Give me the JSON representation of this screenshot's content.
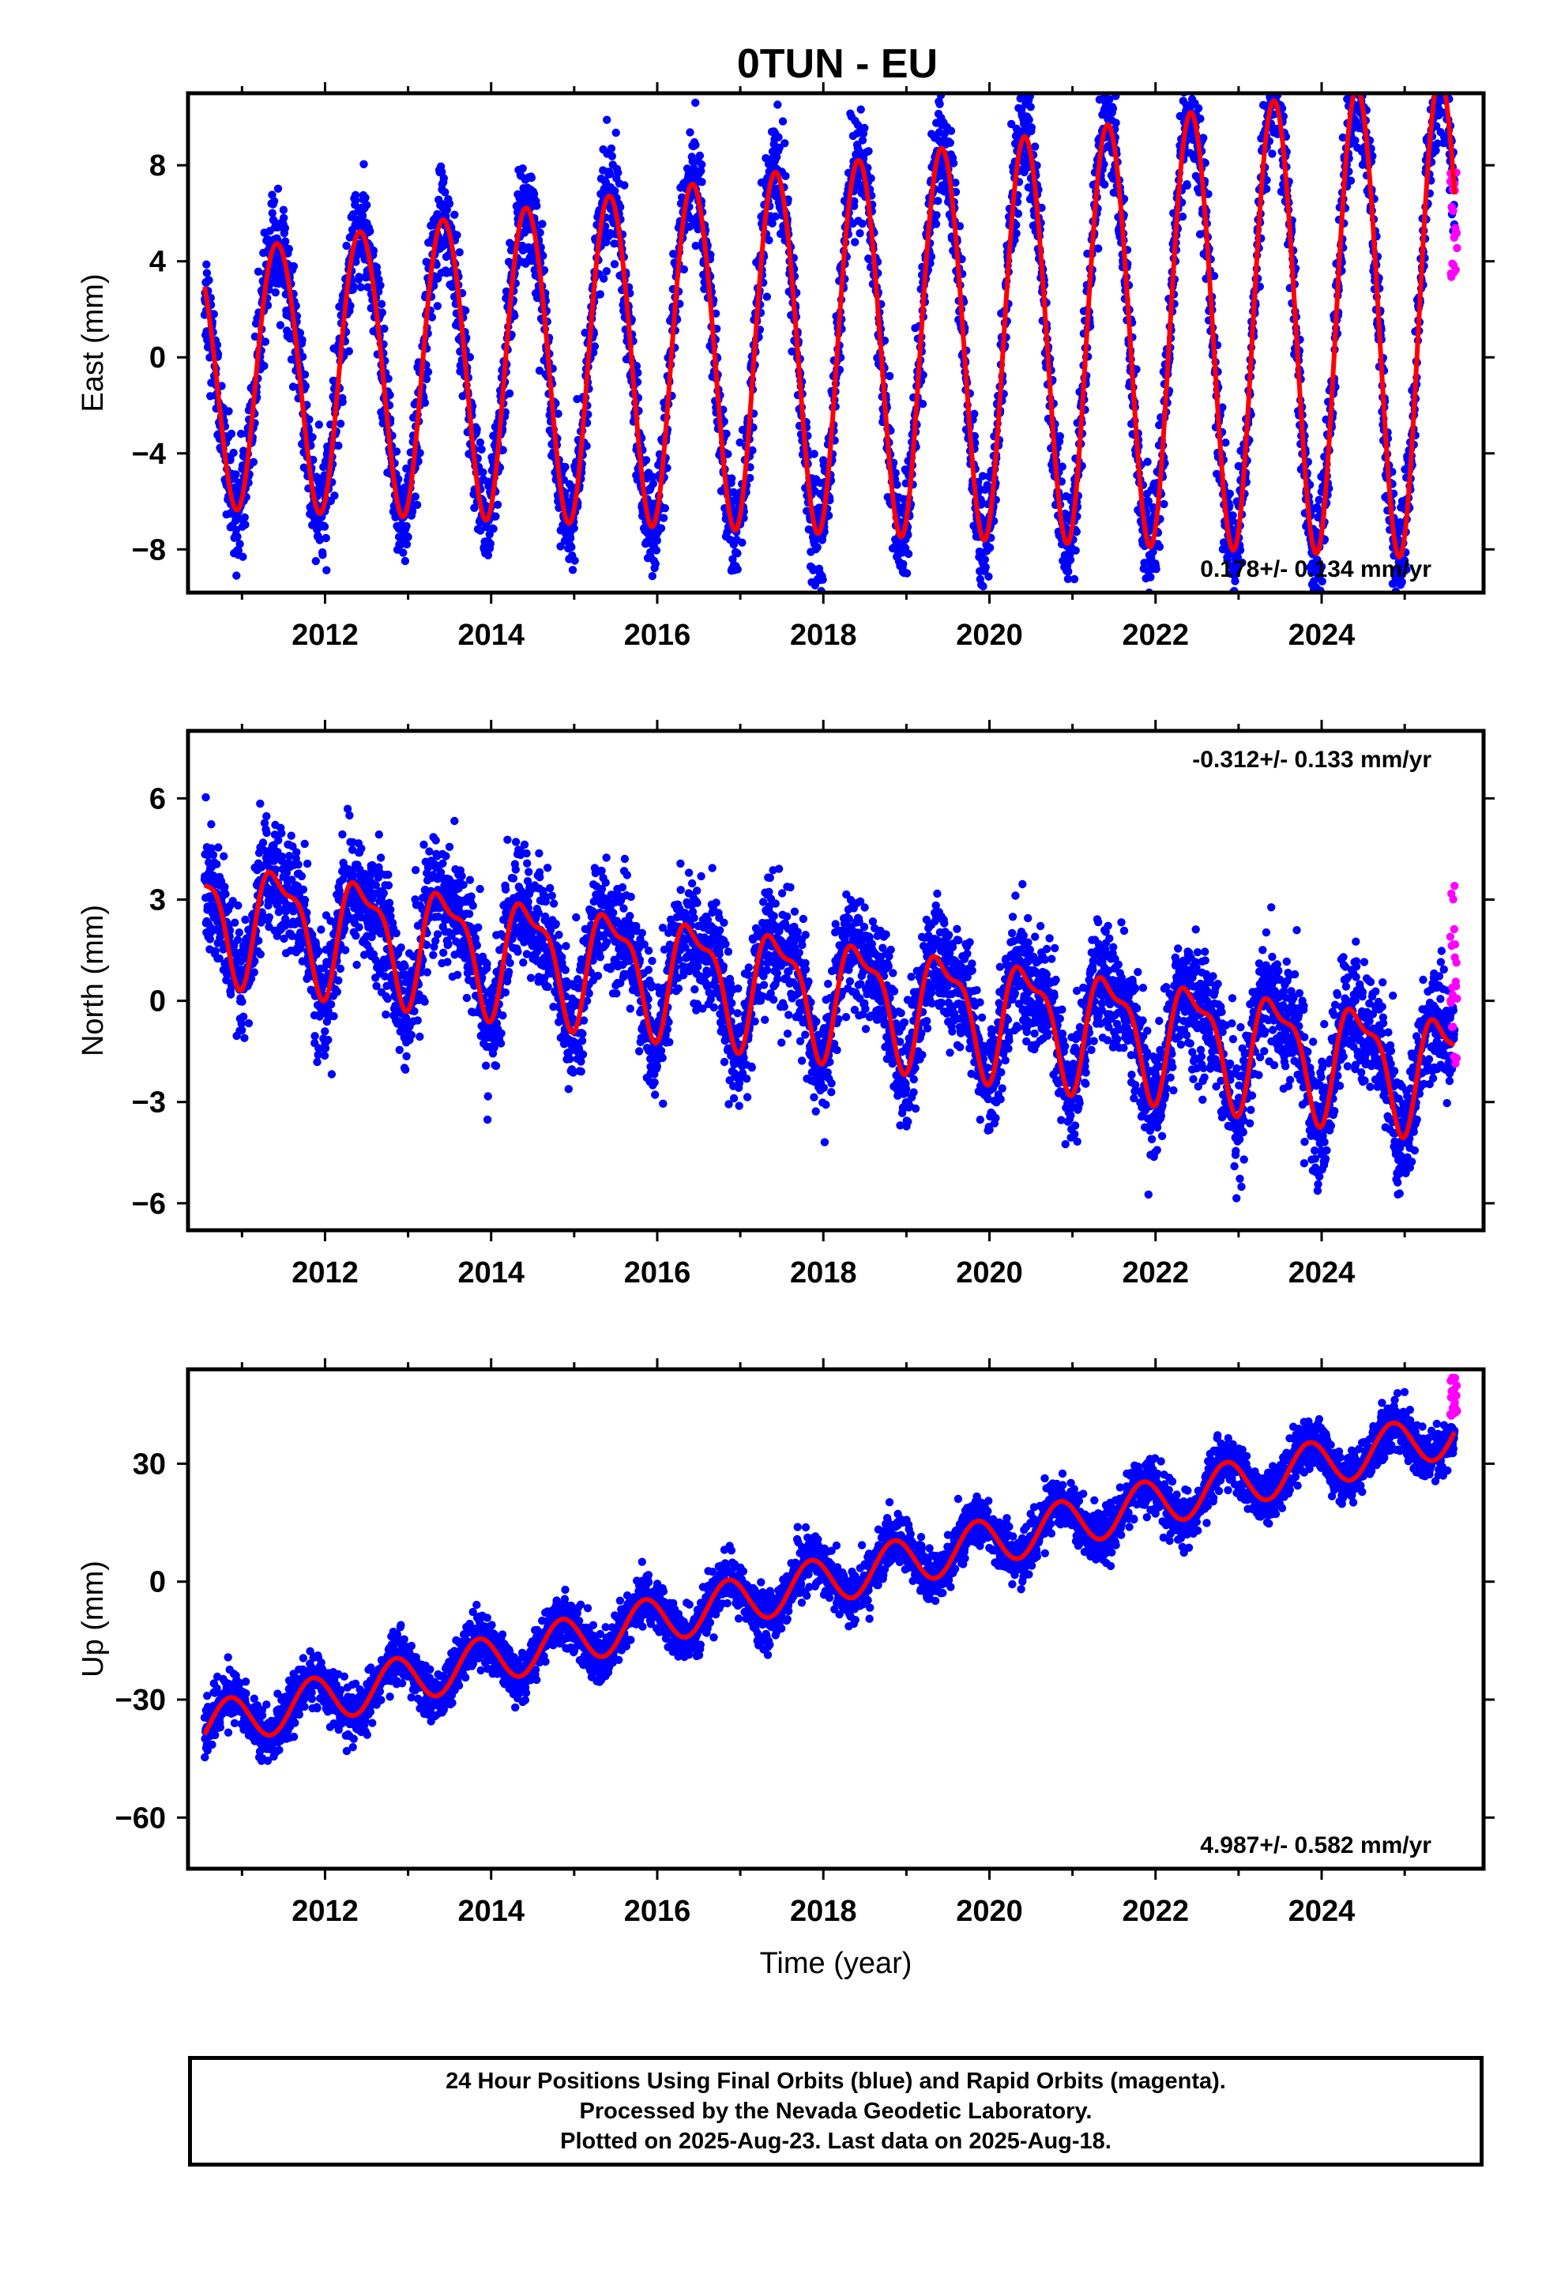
{
  "title": "0TUN - EU",
  "colors": {
    "final": "#0000ff",
    "rapid": "#ff00ff",
    "model": "#ff0000",
    "frame": "#000000"
  },
  "chart_data": [
    {
      "type": "scatter",
      "name": "east",
      "ylabel": "East (mm)",
      "xlabel": "",
      "xlim": [
        2010.35,
        2025.95
      ],
      "ylim": [
        -9.8,
        11.0
      ],
      "yticks": [
        -8,
        -4,
        0,
        4,
        8
      ],
      "ytick_labels": [
        "−8",
        "−4",
        "0",
        "4",
        "8"
      ],
      "xticks": [
        2012,
        2014,
        2016,
        2018,
        2020,
        2022,
        2024
      ],
      "xtick_labels": [
        "2012",
        "2014",
        "2016",
        "2018",
        "2020",
        "2022",
        "2024"
      ],
      "rate_label": "0.178+/- 0.134 mm/yr",
      "rate_position": "bottom-right",
      "model": {
        "start_year": 2010.55,
        "end_year": 2025.6,
        "offset": -0.75,
        "trend_mm_per_yr": 0.178,
        "amplitude": 5.3,
        "amplitude_growth": 0.06,
        "phase_year": 0.18,
        "semiannual_amp": 0.3,
        "scatter_sd": 1.5
      },
      "rapid": {
        "start_year": 2025.55,
        "end_year": 2025.63,
        "ymin": 2.8,
        "ymax": 8.1
      }
    },
    {
      "type": "scatter",
      "name": "north",
      "ylabel": "North (mm)",
      "xlabel": "",
      "xlim": [
        2010.35,
        2025.95
      ],
      "ylim": [
        -6.8,
        8.0
      ],
      "yticks": [
        -6,
        -3,
        0,
        3,
        6
      ],
      "ytick_labels": [
        "−6",
        "−3",
        "0",
        "3",
        "6"
      ],
      "xticks": [
        2012,
        2014,
        2016,
        2018,
        2020,
        2022,
        2024
      ],
      "xtick_labels": [
        "2012",
        "2014",
        "2016",
        "2018",
        "2020",
        "2022",
        "2024"
      ],
      "rate_label": "-0.312+/- 0.133 mm/yr",
      "rate_position": "top-right",
      "model": {
        "start_year": 2010.55,
        "end_year": 2025.6,
        "offset": 2.6,
        "trend_mm_per_yr": -0.312,
        "amplitude": 1.6,
        "amplitude_growth": 0.0,
        "phase_year": 0.2,
        "semiannual_amp": 0.6,
        "scatter_sd": 1.15
      },
      "rapid": {
        "start_year": 2025.55,
        "end_year": 2025.63,
        "ymin": -2.0,
        "ymax": 3.8
      }
    },
    {
      "type": "scatter",
      "name": "up",
      "ylabel": "Up (mm)",
      "xlabel": "Time (year)",
      "xlim": [
        2010.35,
        2025.95
      ],
      "ylim": [
        -73,
        54
      ],
      "yticks": [
        -60,
        -30,
        0,
        30
      ],
      "ytick_labels": [
        "−60",
        "−30",
        "0",
        "30"
      ],
      "xticks": [
        2012,
        2014,
        2016,
        2018,
        2020,
        2022,
        2024
      ],
      "xtick_labels": [
        "2012",
        "2014",
        "2016",
        "2018",
        "2020",
        "2022",
        "2024"
      ],
      "rate_label": "4.987+/- 0.582 mm/yr",
      "rate_position": "bottom-right",
      "model": {
        "start_year": 2010.55,
        "end_year": 2025.6,
        "offset": -37.0,
        "trend_mm_per_yr": 4.987,
        "amplitude": 6.0,
        "amplitude_growth": 0.0,
        "phase_year": 0.6,
        "semiannual_amp": 0.0,
        "scatter_sd": 4.2
      },
      "rapid": {
        "start_year": 2025.55,
        "end_year": 2025.63,
        "ymin": 42,
        "ymax": 52
      }
    }
  ],
  "footer": {
    "line1": "24 Hour Positions Using Final Orbits (blue) and Rapid Orbits (magenta).",
    "line2": "Processed by the Nevada Geodetic Laboratory.",
    "line3": "Plotted on 2025-Aug-23. Last data on 2025-Aug-18."
  }
}
